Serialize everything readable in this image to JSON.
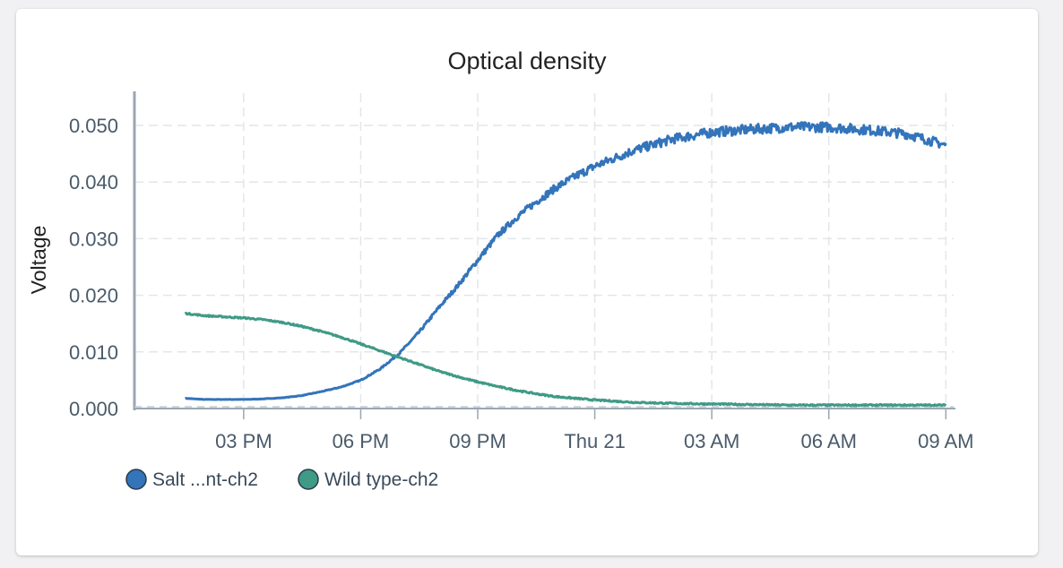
{
  "chart_data": {
    "type": "line",
    "title": "Optical density",
    "xlabel": "",
    "ylabel": "Voltage",
    "ylim": [
      0,
      0.056
    ],
    "x_hours": [
      13.5,
      14,
      14.5,
      15,
      15.5,
      16,
      16.5,
      17,
      17.5,
      18,
      18.5,
      19,
      19.5,
      20,
      20.5,
      21,
      21.5,
      22,
      22.5,
      23,
      23.5,
      24,
      25,
      26,
      27,
      28,
      29,
      30,
      31,
      32,
      33
    ],
    "x_tick_values": [
      15,
      18,
      21,
      24,
      27,
      30,
      33
    ],
    "x_tick_labels": [
      "03 PM",
      "06 PM",
      "09 PM",
      "Thu 21",
      "03 AM",
      "06 AM",
      "09 AM"
    ],
    "y_tick_values": [
      0.0,
      0.01,
      0.02,
      0.03,
      0.04,
      0.05
    ],
    "y_tick_labels": [
      "0.000",
      "0.010",
      "0.020",
      "0.030",
      "0.040",
      "0.050"
    ],
    "grid": true,
    "legend_position": "bottom-left",
    "series": [
      {
        "name": "Salt ...nt-ch2",
        "color": "#3374ba",
        "values": [
          0.0018,
          0.0016,
          0.0016,
          0.0016,
          0.0017,
          0.0019,
          0.0023,
          0.003,
          0.0038,
          0.005,
          0.007,
          0.0098,
          0.0135,
          0.0178,
          0.0218,
          0.0262,
          0.0305,
          0.0338,
          0.0365,
          0.039,
          0.041,
          0.0428,
          0.0456,
          0.0476,
          0.0488,
          0.0493,
          0.0497,
          0.0497,
          0.0492,
          0.0485,
          0.0465
        ]
      },
      {
        "name": "Wild type-ch2",
        "color": "#3f9a86",
        "values": [
          0.0168,
          0.0164,
          0.0162,
          0.016,
          0.0157,
          0.0152,
          0.0145,
          0.0136,
          0.0126,
          0.0114,
          0.0102,
          0.009,
          0.0078,
          0.0066,
          0.0056,
          0.0047,
          0.0039,
          0.0032,
          0.0026,
          0.0021,
          0.0018,
          0.0015,
          0.0011,
          0.0009,
          0.0008,
          0.0007,
          0.0006,
          0.0006,
          0.0006,
          0.0006,
          0.0006
        ]
      }
    ]
  }
}
